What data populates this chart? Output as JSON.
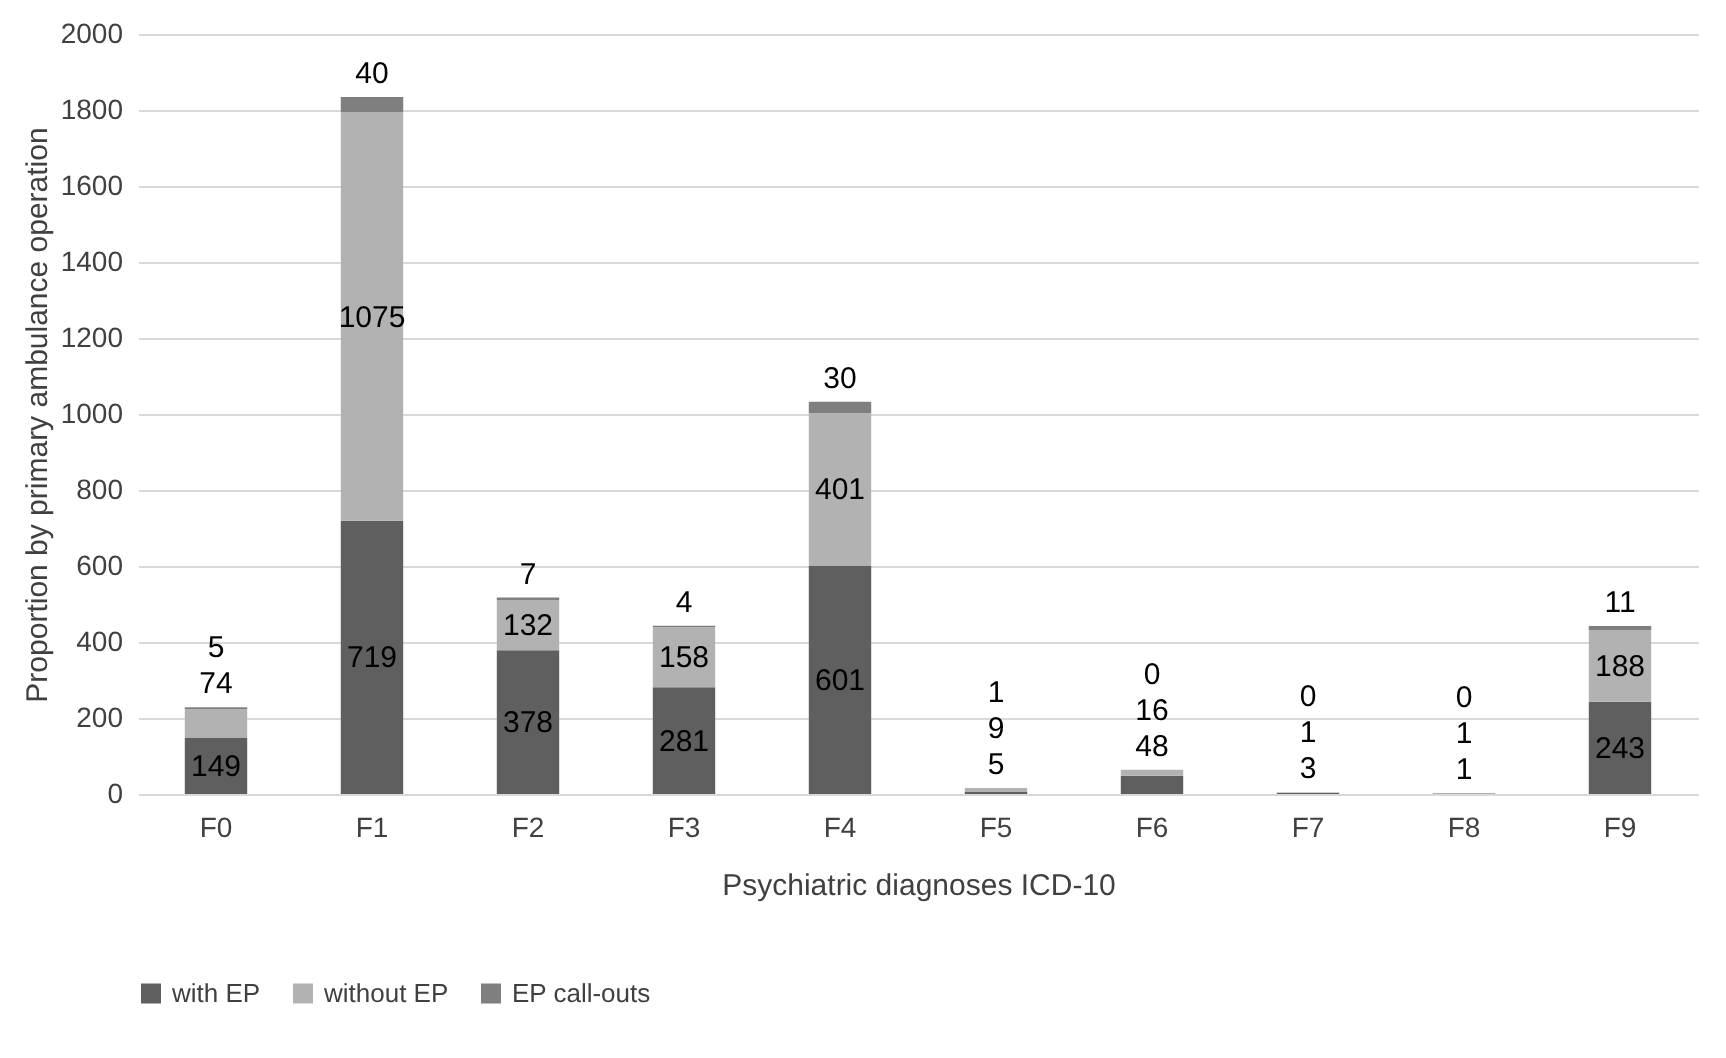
{
  "chart_data": {
    "type": "bar",
    "stacked": true,
    "xlabel": "Psychiatric diagnoses ICD-10",
    "ylabel": "Proportion by primary ambulance operation",
    "categories": [
      "F0",
      "F1",
      "F2",
      "F3",
      "F4",
      "F5",
      "F6",
      "F7",
      "F8",
      "F9"
    ],
    "series": [
      {
        "name": "with EP",
        "color": "#5f5f5f",
        "values": [
          149,
          719,
          378,
          281,
          601,
          5,
          48,
          3,
          1,
          243
        ]
      },
      {
        "name": "without EP",
        "color": "#b2b2b2",
        "values": [
          74,
          1075,
          132,
          158,
          401,
          9,
          16,
          1,
          1,
          188
        ]
      },
      {
        "name": "EP call-outs",
        "color": "#7f7f7f",
        "values": [
          5,
          40,
          7,
          4,
          30,
          1,
          0,
          0,
          0,
          11
        ]
      }
    ],
    "ylim": [
      0,
      2000
    ],
    "yticks": [
      0,
      200,
      400,
      600,
      800,
      1000,
      1200,
      1400,
      1600,
      1800,
      2000
    ],
    "grid": "y",
    "legend": "bottom",
    "data_labels": true
  }
}
